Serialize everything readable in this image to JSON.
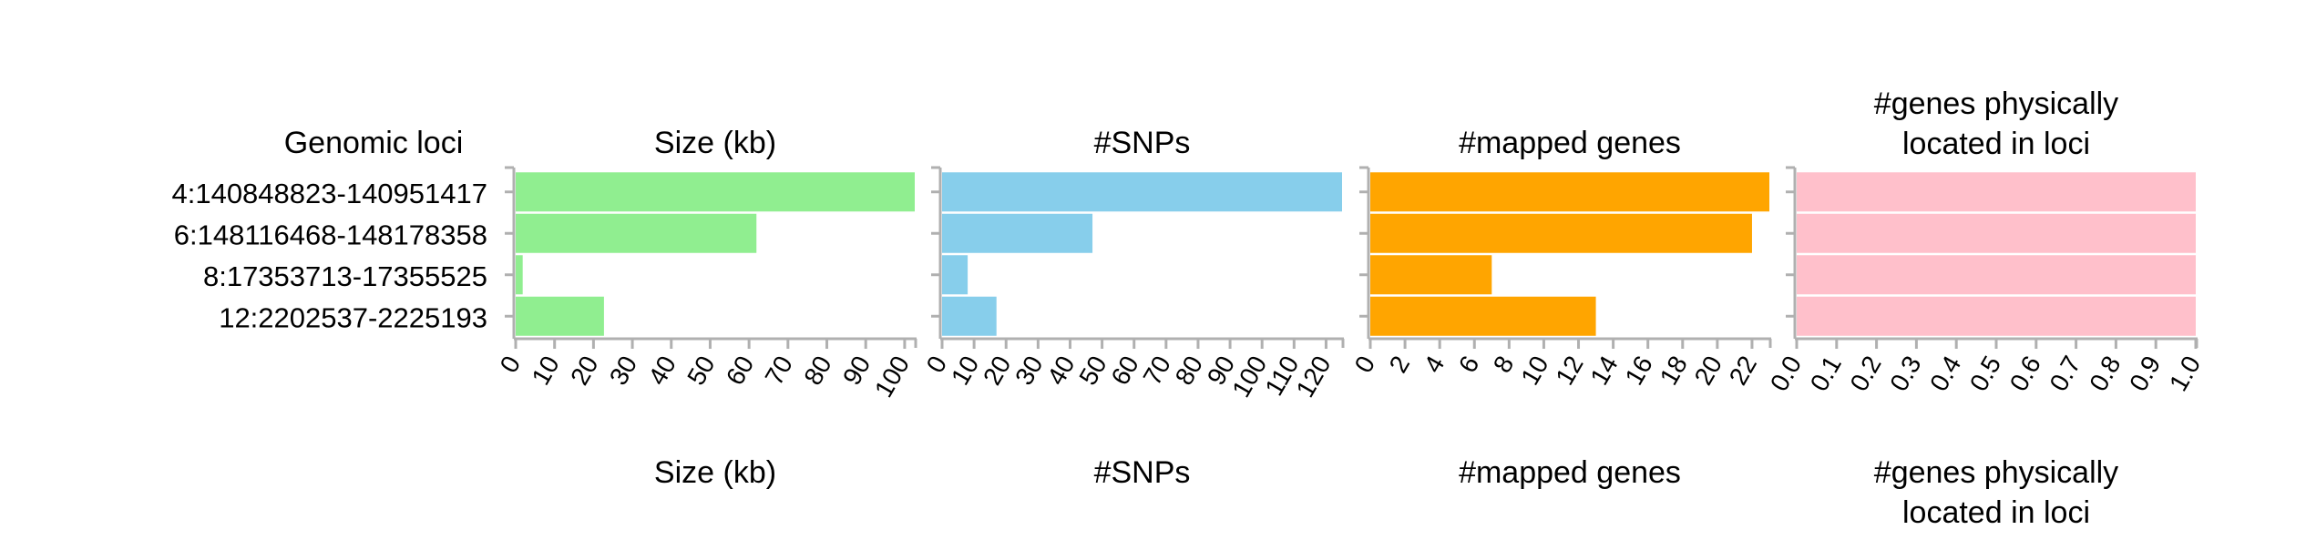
{
  "header": {
    "loci_column_title": "Genomic loci"
  },
  "loci": [
    "4:140848823-140951417",
    "6:148116468-148178358",
    "8:17353713-17355525",
    "12:2202537-2225193"
  ],
  "chart_data": [
    {
      "type": "bar",
      "orientation": "horizontal",
      "title": "Size (kb)",
      "xlabel": "Size (kb)",
      "categories": [
        "4:140848823-140951417",
        "6:148116468-148178358",
        "8:17353713-17355525",
        "12:2202537-2225193"
      ],
      "values": [
        102.6,
        61.9,
        1.8,
        22.7
      ],
      "xlim": [
        0,
        102.6
      ],
      "ticks": [
        0,
        10,
        20,
        30,
        40,
        50,
        60,
        70,
        80,
        90,
        100
      ],
      "tick_labels": [
        "0",
        "10",
        "20",
        "30",
        "40",
        "50",
        "60",
        "70",
        "80",
        "90",
        "100"
      ],
      "color": "#90ee90",
      "grid": false
    },
    {
      "type": "bar",
      "orientation": "horizontal",
      "title": "#SNPs",
      "xlabel": "#SNPs",
      "categories": [
        "4:140848823-140951417",
        "6:148116468-148178358",
        "8:17353713-17355525",
        "12:2202537-2225193"
      ],
      "values": [
        125,
        47,
        8,
        17
      ],
      "xlim": [
        0,
        125
      ],
      "ticks": [
        0,
        10,
        20,
        30,
        40,
        50,
        60,
        70,
        80,
        90,
        100,
        110,
        120
      ],
      "tick_labels": [
        "0",
        "10",
        "20",
        "30",
        "40",
        "50",
        "60",
        "70",
        "80",
        "90",
        "100",
        "110",
        "120"
      ],
      "color": "#87ceeb",
      "grid": false
    },
    {
      "type": "bar",
      "orientation": "horizontal",
      "title": "#mapped genes",
      "xlabel": "#mapped genes",
      "categories": [
        "4:140848823-140951417",
        "6:148116468-148178358",
        "8:17353713-17355525",
        "12:2202537-2225193"
      ],
      "values": [
        23,
        22,
        7,
        13
      ],
      "xlim": [
        0,
        23
      ],
      "ticks": [
        0,
        2,
        4,
        6,
        8,
        10,
        12,
        14,
        16,
        18,
        20,
        22
      ],
      "tick_labels": [
        "0",
        "2",
        "4",
        "6",
        "8",
        "10",
        "12",
        "14",
        "16",
        "18",
        "20",
        "22"
      ],
      "color": "#ffa500",
      "grid": false
    },
    {
      "type": "bar",
      "orientation": "horizontal",
      "title": "#genes physically\nlocated in loci",
      "xlabel": "#genes physically\nlocated in loci",
      "categories": [
        "4:140848823-140951417",
        "6:148116468-148178358",
        "8:17353713-17355525",
        "12:2202537-2225193"
      ],
      "values": [
        1.0,
        1.0,
        1.0,
        1.0
      ],
      "xlim": [
        0,
        1.0
      ],
      "ticks": [
        0,
        0.1,
        0.2,
        0.3,
        0.4,
        0.5,
        0.6,
        0.7,
        0.8,
        0.9,
        1.0
      ],
      "tick_labels": [
        "0.0",
        "0.1",
        "0.2",
        "0.3",
        "0.4",
        "0.5",
        "0.6",
        "0.7",
        "0.8",
        "0.9",
        "1.0"
      ],
      "color": "#ffc0cb",
      "grid": false
    }
  ]
}
